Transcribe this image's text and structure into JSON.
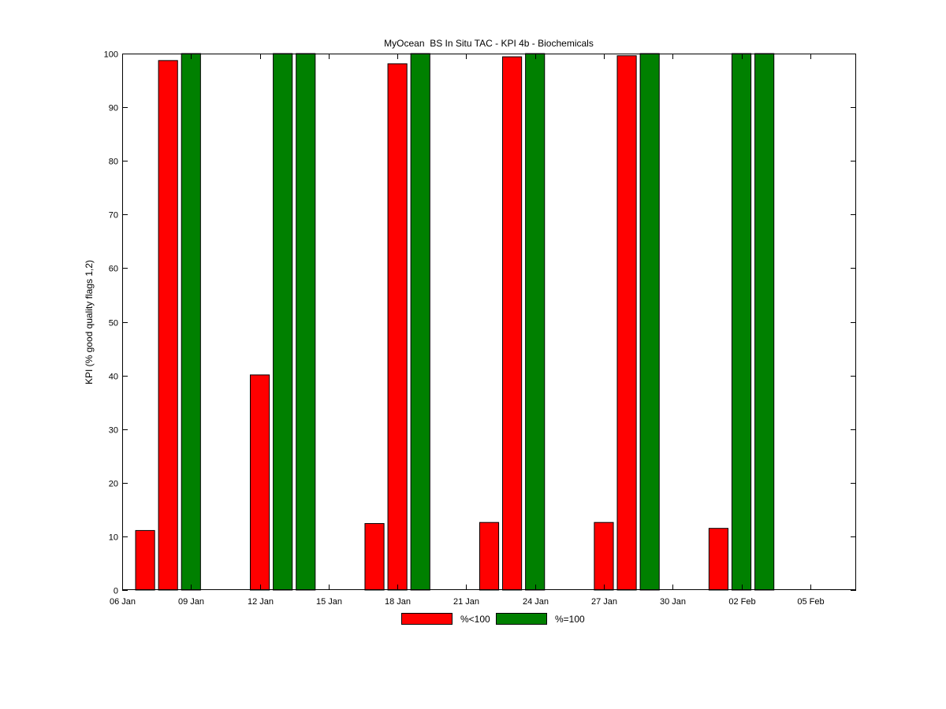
{
  "chart_data": {
    "type": "bar",
    "title": "MyOcean  BS In Situ TAC - KPI 4b - Biochemicals",
    "xlabel": "",
    "ylabel": "KPI (% good quality flags 1,2)",
    "ylim": [
      0,
      100
    ],
    "yticks": [
      0,
      10,
      20,
      30,
      40,
      50,
      60,
      70,
      80,
      90,
      100
    ],
    "xlim": [
      "06 Jan",
      "07 Feb"
    ],
    "xticks": [
      "06 Jan",
      "09 Jan",
      "12 Jan",
      "15 Jan",
      "18 Jan",
      "21 Jan",
      "24 Jan",
      "27 Jan",
      "30 Jan",
      "02 Feb",
      "05 Feb"
    ],
    "grid": false,
    "legend_position": "bottom-center",
    "series": [
      {
        "name": "%<100",
        "color": "#ff0000",
        "points": [
          {
            "x": "07 Jan",
            "y": 11.1
          },
          {
            "x": "08 Jan",
            "y": 98.7
          },
          {
            "x": "12 Jan",
            "y": 40.1
          },
          {
            "x": "17 Jan",
            "y": 12.4
          },
          {
            "x": "18 Jan",
            "y": 98.1
          },
          {
            "x": "22 Jan",
            "y": 12.6
          },
          {
            "x": "23 Jan",
            "y": 99.4
          },
          {
            "x": "27 Jan",
            "y": 12.6
          },
          {
            "x": "28 Jan",
            "y": 99.6
          },
          {
            "x": "01 Feb",
            "y": 11.5
          }
        ]
      },
      {
        "name": "%=100",
        "color": "#008000",
        "points": [
          {
            "x": "09 Jan",
            "y": 100
          },
          {
            "x": "13 Jan",
            "y": 100
          },
          {
            "x": "14 Jan",
            "y": 100
          },
          {
            "x": "19 Jan",
            "y": 100
          },
          {
            "x": "24 Jan",
            "y": 100
          },
          {
            "x": "29 Jan",
            "y": 100
          },
          {
            "x": "02 Feb",
            "y": 100
          },
          {
            "x": "03 Feb",
            "y": 100
          }
        ]
      }
    ]
  }
}
